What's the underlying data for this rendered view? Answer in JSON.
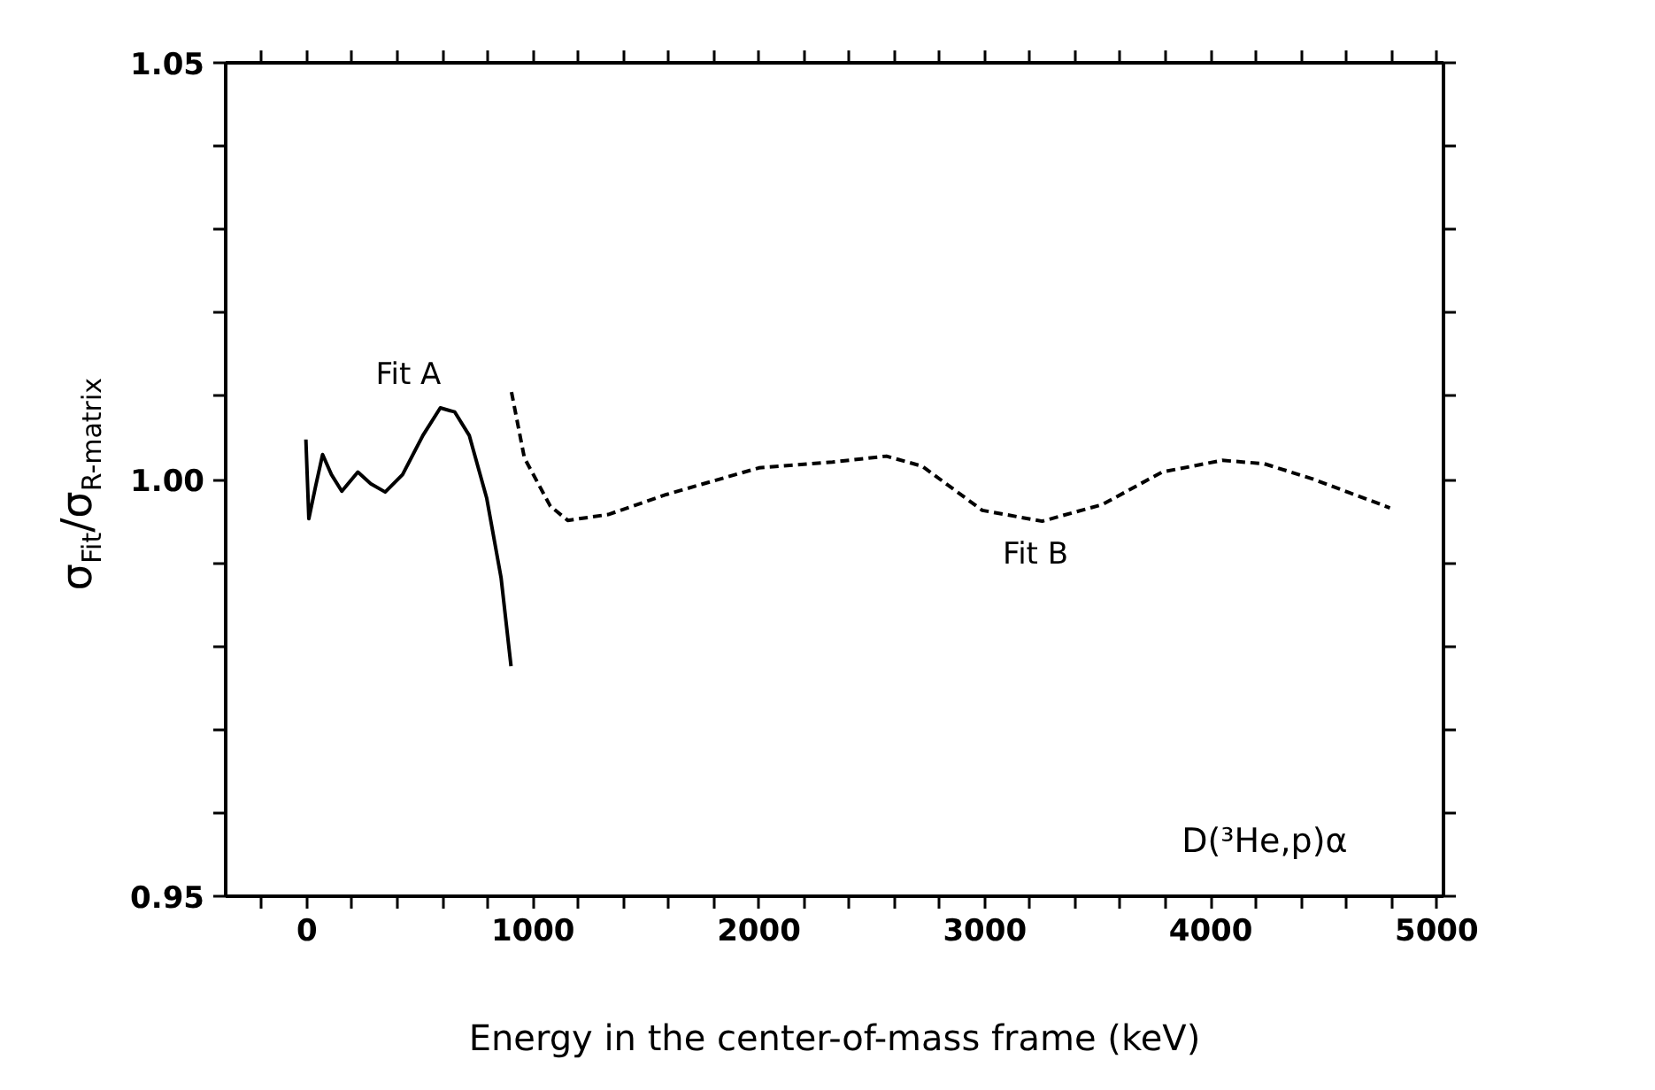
{
  "chart_data": {
    "type": "line",
    "xlabel": "Energy in the center-of-mass frame (keV)",
    "ylabel": "σ$_{Fit}$/σ$_{R-matrix}$",
    "xlim": [
      -360,
      5030
    ],
    "ylim": [
      0.95,
      1.05
    ],
    "xticks": [
      {
        "value": -200,
        "label": null
      },
      0,
      {
        "value": 200,
        "label": null
      },
      {
        "value": 400,
        "label": null
      },
      {
        "value": 600,
        "label": null
      },
      {
        "value": 800,
        "label": null
      },
      1000,
      {
        "value": 1200,
        "label": null
      },
      {
        "value": 1400,
        "label": null
      },
      {
        "value": 1600,
        "label": null
      },
      {
        "value": 1800,
        "label": null
      },
      2000,
      {
        "value": 2200,
        "label": null
      },
      {
        "value": 2400,
        "label": null
      },
      {
        "value": 2600,
        "label": null
      },
      {
        "value": 2800,
        "label": null
      },
      3000,
      {
        "value": 3200,
        "label": null
      },
      {
        "value": 3400,
        "label": null
      },
      {
        "value": 3600,
        "label": null
      },
      {
        "value": 3800,
        "label": null
      },
      4000,
      {
        "value": 4200,
        "label": null
      },
      {
        "value": 4400,
        "label": null
      },
      {
        "value": 4600,
        "label": null
      },
      {
        "value": 4800,
        "label": null
      },
      5000
    ],
    "yticks": [
      0.95,
      {
        "value": 0.96,
        "label": null
      },
      {
        "value": 0.97,
        "label": null
      },
      {
        "value": 0.98,
        "label": null
      },
      {
        "value": 0.99,
        "label": null
      },
      {
        "value": 1.0,
        "label": "1.00"
      },
      {
        "value": 1.01,
        "label": null
      },
      {
        "value": 1.02,
        "label": null
      },
      {
        "value": 1.03,
        "label": null
      },
      {
        "value": 1.04,
        "label": null
      },
      1.05
    ],
    "grid": false,
    "marker": "none",
    "series": [
      {
        "color": "#000000",
        "line_style": "solid",
        "x": [
          -5,
          8,
          38,
          69,
          108,
          154,
          225,
          282,
          346,
          423,
          513,
          590,
          654,
          718,
          795,
          859,
          903
        ],
        "values": [
          1.0048,
          0.9953,
          0.9992,
          1.003,
          1.0006,
          0.9986,
          1.0009,
          0.9995,
          0.9985,
          1.0006,
          1.0053,
          1.0086,
          1.0081,
          1.0053,
          0.9978,
          0.9882,
          0.9776
        ]
      },
      {
        "color": "#000000",
        "line_style": "dashed",
        "x": [
          905,
          962,
          1077,
          1154,
          1333,
          1590,
          1846,
          2000,
          2326,
          2565,
          2723,
          2989,
          3254,
          3520,
          3785,
          4051,
          4236,
          4448,
          4793
        ],
        "values": [
          1.0105,
          1.0026,
          0.9968,
          0.9951,
          0.9958,
          0.9982,
          1.0002,
          1.0014,
          1.0021,
          1.0028,
          1.0016,
          0.9963,
          0.995,
          0.997,
          1.0009,
          1.0023,
          1.0019,
          1.0001,
          0.9966
        ]
      }
    ],
    "annotations": [
      "Fit A",
      "Fit B",
      "D(³He,p)α"
    ]
  }
}
